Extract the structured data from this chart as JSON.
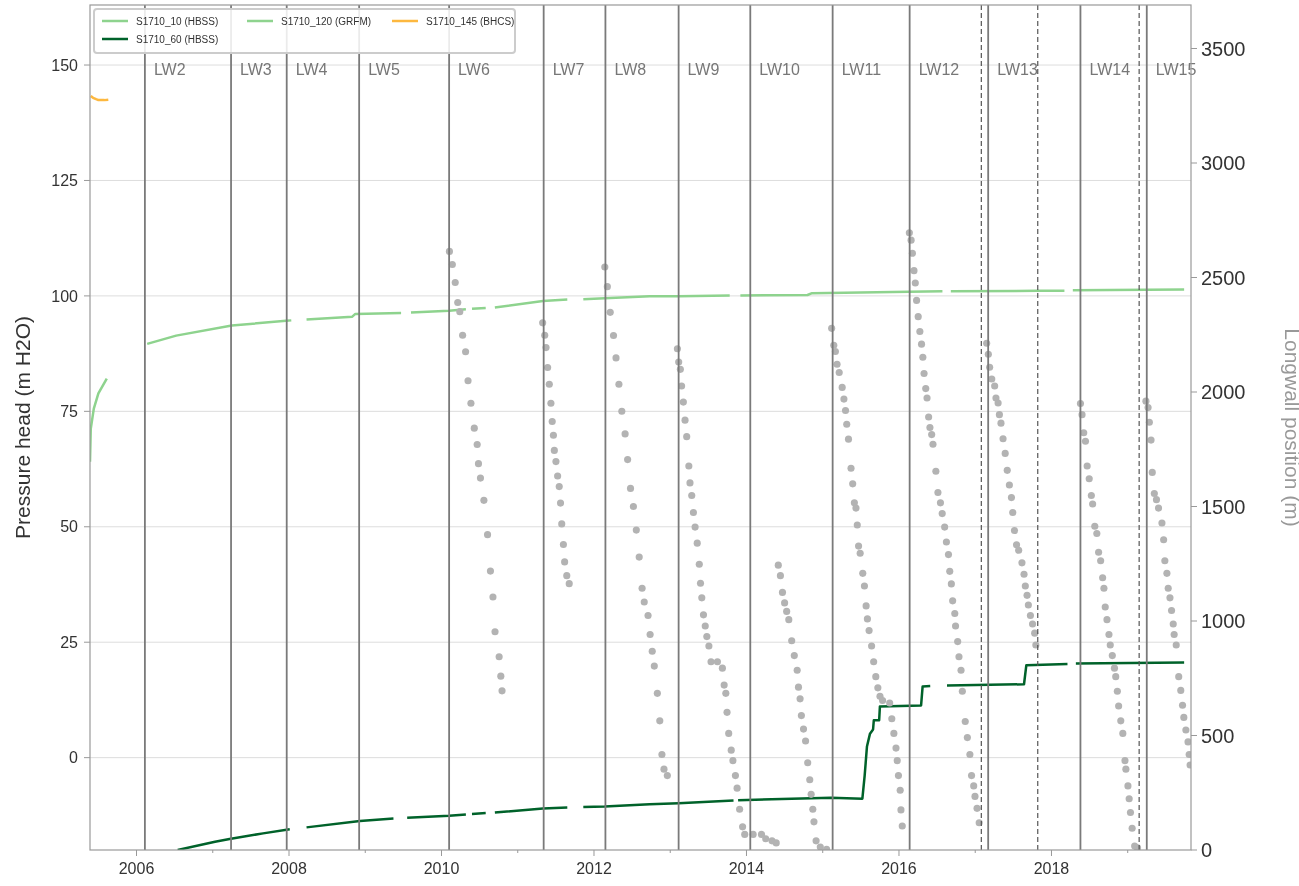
{
  "chart_data": {
    "type": "line",
    "ylabel": "Pressure head (m H2O)",
    "y2label": "Longwall position (m)",
    "xlim": [
      2005.39,
      2019.83
    ],
    "xticks": [
      2006,
      {
        "value": 2007,
        "label": null
      },
      2008,
      {
        "value": 2009,
        "label": null
      },
      2010,
      {
        "value": 2011,
        "label": null
      },
      2012,
      {
        "value": 2013,
        "label": null
      },
      2014,
      {
        "value": 2015,
        "label": null
      },
      2016,
      {
        "value": 2017,
        "label": null
      },
      2018,
      {
        "value": 2019,
        "label": null
      }
    ],
    "ylim": [
      -20,
      163
    ],
    "yticks": [
      0,
      25,
      50,
      75,
      100,
      125,
      150
    ],
    "y2lim": [
      0,
      3690
    ],
    "y2ticks": [
      0,
      500,
      1000,
      1500,
      2000,
      2500,
      3000,
      3500
    ],
    "grid": "y",
    "legend": "top left",
    "series": [
      {
        "name": "S1710_10 (HBSS)",
        "color": "#8ed38e",
        "x": [
          2005.39,
          2005.4,
          2005.44,
          2005.5,
          2005.61
        ],
        "values": [
          64.1,
          71.2,
          75.6,
          78.9,
          82.1
        ]
      },
      {
        "name": "S1710_60 (HBSS)",
        "color": "#00622a",
        "x": [
          2006.54,
          2007.03,
          2007.22,
          2007.66,
          2008.01,
          2008.12,
          2008.23,
          2008.93,
          2009.37,
          2009.46,
          2009.55,
          2010.1,
          2010.32,
          2010.36,
          2010.4,
          2010.58,
          2010.64,
          2010.7,
          2011.33,
          2011.65,
          2011.75,
          2011.86,
          2012.14,
          2012.73,
          2013.11,
          2013.83,
          2013.86,
          2013.89,
          2015.11,
          2015.52,
          2015.55,
          2015.58,
          2015.62,
          2015.66,
          2015.67,
          2015.74,
          2015.75,
          2016.29,
          2016.31,
          2016.41,
          2016.52,
          2016.63,
          2017.64,
          2017.67,
          2018.21,
          2018.26,
          2018.32,
          2019.74
        ],
        "values": [
          -20.0,
          -18.2,
          -17.6,
          -16.4,
          -15.5,
          null,
          -15.1,
          -13.7,
          -13.2,
          null,
          -13.0,
          -12.6,
          -12.3,
          null,
          -12.2,
          -12.0,
          null,
          -11.9,
          -11.0,
          -10.8,
          null,
          -10.7,
          -10.6,
          -10.1,
          -9.9,
          -9.3,
          null,
          -9.2,
          -8.7,
          -8.9,
          -3.9,
          2.4,
          5.2,
          6.1,
          8.1,
          8.1,
          11.1,
          11.3,
          15.4,
          15.5,
          null,
          15.6,
          15.9,
          20.0,
          20.3,
          null,
          20.4,
          20.6
        ]
      },
      {
        "name": "S1710_120 (GRFM)",
        "color": "#8ed38e",
        "x": [
          2006.14,
          2006.52,
          2007.25,
          2007.96,
          2008.03,
          2008.13,
          2008.23,
          2008.83,
          2008.87,
          2009.47,
          2009.53,
          2009.6,
          2010.1,
          2010.32,
          2010.36,
          2010.4,
          2010.58,
          2010.64,
          2010.7,
          2011.33,
          2011.65,
          2011.75,
          2011.86,
          2012.14,
          2012.73,
          2013.11,
          2013.78,
          2013.85,
          2013.92,
          2014.8,
          2014.86,
          2016.13,
          2016.57,
          2016.62,
          2016.68,
          2017.81,
          2018.17,
          2018.22,
          2018.28,
          2019.74
        ],
        "values": [
          89.6,
          91.4,
          93.6,
          94.6,
          94.7,
          null,
          94.9,
          95.5,
          96.1,
          96.3,
          null,
          96.4,
          96.8,
          97.1,
          null,
          97.2,
          97.4,
          null,
          97.5,
          98.9,
          99.2,
          null,
          99.3,
          99.5,
          99.9,
          99.9,
          100.1,
          null,
          100.1,
          100.2,
          100.6,
          100.9,
          101.0,
          null,
          101.0,
          101.1,
          101.1,
          null,
          101.2,
          101.4
        ]
      },
      {
        "name": "S1710_145 (BHCS)",
        "color": "#fdb83f",
        "x": [
          2005.4,
          2005.43,
          2005.47,
          2005.5,
          2005.53,
          2005.58,
          2005.63
        ],
        "values": [
          143.3,
          142.9,
          142.6,
          142.4,
          142.4,
          142.4,
          142.5
        ]
      },
      {
        "type": "scatter",
        "axis": "y2",
        "color": "#b3b3b3",
        "marker": "circle",
        "x": [
          2010.104,
          2010.142,
          2010.18,
          2010.213,
          2010.24,
          2010.277,
          2010.316,
          2010.348,
          2010.386,
          2010.43,
          2010.468,
          2010.485,
          2010.511,
          2010.556,
          2010.604,
          2010.642,
          2010.675,
          2010.702,
          2010.756,
          2010.778,
          2010.794,
          2011.327,
          2011.354,
          2011.371,
          2011.392,
          2011.414,
          2011.435,
          2011.452,
          2011.468,
          2011.48,
          2011.501,
          2011.523,
          2011.544,
          2011.561,
          2011.577,
          2011.599,
          2011.615,
          2011.643,
          2011.675,
          2012.142,
          2012.175,
          2012.213,
          2012.256,
          2012.289,
          2012.327,
          2012.365,
          2012.408,
          2012.441,
          2012.479,
          2012.517,
          2012.555,
          2012.593,
          2012.631,
          2012.659,
          2012.709,
          2012.736,
          2012.764,
          2012.791,
          2012.831,
          2012.863,
          2012.891,
          2012.918,
          2012.962,
          2013.094,
          2013.111,
          2013.133,
          2013.149,
          2013.172,
          2013.194,
          2013.216,
          2013.244,
          2013.259,
          2013.282,
          2013.304,
          2013.326,
          2013.354,
          2013.381,
          2013.397,
          2013.414,
          2013.436,
          2013.459,
          2013.48,
          2013.507,
          2013.535,
          2013.619,
          2013.684,
          2013.707,
          2013.729,
          2013.745,
          2013.767,
          2013.8,
          2013.822,
          2013.855,
          2013.877,
          2013.91,
          2013.949,
          2013.977,
          2014.087,
          2014.197,
          2014.252,
          2014.335,
          2014.39,
          2014.417,
          2014.445,
          2014.472,
          2014.5,
          2014.527,
          2014.555,
          2014.593,
          2014.627,
          2014.665,
          2014.682,
          2014.703,
          2014.72,
          2014.748,
          2014.775,
          2014.803,
          2014.83,
          2014.848,
          2014.87,
          2014.885,
          2014.913,
          2014.968,
          2015.051,
          2015.117,
          2015.145,
          2015.166,
          2015.188,
          2015.216,
          2015.255,
          2015.278,
          2015.299,
          2015.315,
          2015.338,
          2015.371,
          2015.393,
          2015.415,
          2015.436,
          2015.453,
          2015.47,
          2015.491,
          2015.525,
          2015.547,
          2015.569,
          2015.586,
          2015.608,
          2015.641,
          2015.668,
          2015.696,
          2015.723,
          2015.751,
          2015.785,
          2015.878,
          2015.906,
          2015.933,
          2015.961,
          2015.977,
          2015.993,
          2016.016,
          2016.026,
          2016.043,
          2016.136,
          2016.159,
          2016.176,
          2016.197,
          2016.214,
          2016.231,
          2016.252,
          2016.274,
          2016.296,
          2016.313,
          2016.329,
          2016.351,
          2016.368,
          2016.389,
          2016.406,
          2016.429,
          2016.446,
          2016.484,
          2016.511,
          2016.544,
          2016.567,
          2016.599,
          2016.622,
          2016.649,
          2016.666,
          2016.687,
          2016.704,
          2016.732,
          2016.742,
          2016.77,
          2016.787,
          2016.814,
          2016.831,
          2016.869,
          2016.897,
          2016.93,
          2016.952,
          2016.98,
          2016.997,
          2017.024,
          2017.052,
          2017.15,
          2017.172,
          2017.189,
          2017.217,
          2017.255,
          2017.272,
          2017.3,
          2017.317,
          2017.338,
          2017.365,
          2017.393,
          2017.42,
          2017.448,
          2017.475,
          2017.492,
          2017.515,
          2017.542,
          2017.57,
          2017.613,
          2017.64,
          2017.657,
          2017.68,
          2017.697,
          2017.724,
          2017.752,
          2017.78,
          2017.795,
          2018.38,
          2018.401,
          2018.423,
          2018.446,
          2018.468,
          2018.495,
          2018.523,
          2018.54,
          2018.568,
          2018.595,
          2018.618,
          2018.645,
          2018.671,
          2018.688,
          2018.705,
          2018.728,
          2018.754,
          2018.771,
          2018.798,
          2018.826,
          2018.843,
          2018.864,
          2018.881,
          2018.909,
          2018.936,
          2018.964,
          2018.976,
          2019.003,
          2019.019,
          2019.036,
          2019.058,
          2019.091,
          2019.129,
          2019.239,
          2019.267,
          2019.284,
          2019.306,
          2019.322,
          2019.349,
          2019.377,
          2019.404,
          2019.449,
          2019.471,
          2019.487,
          2019.514,
          2019.531,
          2019.554,
          2019.575,
          2019.597,
          2019.609,
          2019.636,
          2019.669,
          2019.696,
          2019.719,
          2019.736,
          2019.763,
          2019.791,
          2019.806,
          2019.818
        ],
        "values": [
          2614,
          2557,
          2478,
          2391,
          2351,
          2248,
          2176,
          2049,
          1951,
          1842,
          1771,
          1687,
          1624,
          1527,
          1377,
          1218,
          1105,
          953,
          844,
          759,
          695,
          2302,
          2248,
          2194,
          2107,
          2034,
          1951,
          1871,
          1811,
          1745,
          1696,
          1633,
          1587,
          1515,
          1424,
          1334,
          1258,
          1198,
          1163,
          2546,
          2460,
          2348,
          2247,
          2149,
          2034,
          1916,
          1817,
          1705,
          1579,
          1500,
          1397,
          1279,
          1143,
          1083,
          1024,
          941,
          868,
          803,
          684,
          564,
          417,
          353,
          325,
          2189,
          2131,
          2099,
          2026,
          1956,
          1877,
          1805,
          1677,
          1603,
          1548,
          1474,
          1410,
          1340,
          1248,
          1165,
          1101,
          1027,
          978,
          932,
          891,
          822,
          822,
          794,
          720,
          684,
          601,
          509,
          436,
          390,
          325,
          270,
          178,
          101,
          68,
          68,
          68,
          49,
          40,
          31,
          1244,
          1198,
          1125,
          1079,
          1042,
          1006,
          914,
          849,
          785,
          711,
          660,
          587,
          528,
          476,
          381,
          307,
          243,
          178,
          123,
          40,
          13,
          3,
          2278,
          2204,
          2177,
          2121,
          2085,
          2020,
          1969,
          1919,
          1859,
          1794,
          1667,
          1599,
          1516,
          1493,
          1419,
          1327,
          1296,
          1208,
          1153,
          1066,
          1009,
          958,
          891,
          822,
          757,
          708,
          671,
          653,
          642,
          573,
          509,
          445,
          390,
          325,
          261,
          175,
          105,
          2695,
          2663,
          2606,
          2530,
          2476,
          2400,
          2329,
          2264,
          2209,
          2152,
          2081,
          2015,
          1974,
          1891,
          1845,
          1814,
          1772,
          1654,
          1561,
          1516,
          1469,
          1410,
          1345,
          1290,
          1217,
          1162,
          1088,
          1033,
          978,
          910,
          844,
          785,
          693,
          561,
          491,
          417,
          325,
          280,
          234,
          182,
          119,
          2213,
          2165,
          2108,
          2057,
          2026,
          1974,
          1952,
          1901,
          1864,
          1796,
          1732,
          1658,
          1594,
          1539,
          1474,
          1395,
          1333,
          1309,
          1254,
          1204,
          1153,
          1112,
          1070,
          1024,
          987,
          947,
          895,
          1950,
          1901,
          1822,
          1785,
          1677,
          1621,
          1548,
          1511,
          1414,
          1382,
          1300,
          1263,
          1189,
          1143,
          1061,
          1006,
          941,
          895,
          849,
          794,
          757,
          693,
          629,
          564,
          509,
          390,
          353,
          280,
          224,
          164,
          95,
          17,
          9,
          1960,
          1932,
          1868,
          1790,
          1649,
          1557,
          1530,
          1493,
          1428,
          1355,
          1263,
          1208,
          1143,
          1101,
          1046,
          987,
          941,
          895,
          757,
          697,
          632,
          579,
          524,
          472,
          417,
          371
        ]
      }
    ],
    "ref_lines": [
      {
        "axis": "x",
        "value": 2006.11,
        "label": "LW2",
        "color": "#7a7a7a"
      },
      {
        "axis": "x",
        "value": 2007.24,
        "label": "LW3",
        "color": "#7a7a7a"
      },
      {
        "axis": "x",
        "value": 2007.97,
        "label": "LW4",
        "color": "#7a7a7a"
      },
      {
        "axis": "x",
        "value": 2008.92,
        "label": "LW5",
        "color": "#7a7a7a"
      },
      {
        "axis": "x",
        "value": 2010.1,
        "label": "LW6",
        "color": "#7a7a7a"
      },
      {
        "axis": "x",
        "value": 2011.34,
        "label": "LW7",
        "color": "#7a7a7a"
      },
      {
        "axis": "x",
        "value": 2012.15,
        "label": "LW8",
        "color": "#7a7a7a"
      },
      {
        "axis": "x",
        "value": 2013.11,
        "label": "LW9",
        "color": "#7a7a7a"
      },
      {
        "axis": "x",
        "value": 2014.05,
        "label": "LW10",
        "color": "#7a7a7a"
      },
      {
        "axis": "x",
        "value": 2015.13,
        "label": "LW11",
        "color": "#7a7a7a"
      },
      {
        "axis": "x",
        "value": 2016.14,
        "label": "LW12",
        "color": "#7a7a7a"
      },
      {
        "axis": "x",
        "value": 2017.17,
        "label": "LW13",
        "color": "#7a7a7a"
      },
      {
        "axis": "x",
        "value": 2018.38,
        "label": "LW14",
        "color": "#7a7a7a"
      },
      {
        "axis": "x",
        "value": 2019.25,
        "label": "LW15",
        "color": "#7a7a7a"
      },
      {
        "axis": "x",
        "value": 2017.08,
        "color": "#555555",
        "line_style": "dashed"
      },
      {
        "axis": "x",
        "value": 2017.82,
        "color": "#555555",
        "line_style": "dashed"
      },
      {
        "axis": "x",
        "value": 2019.15,
        "color": "#555555",
        "line_style": "dashed"
      }
    ]
  }
}
